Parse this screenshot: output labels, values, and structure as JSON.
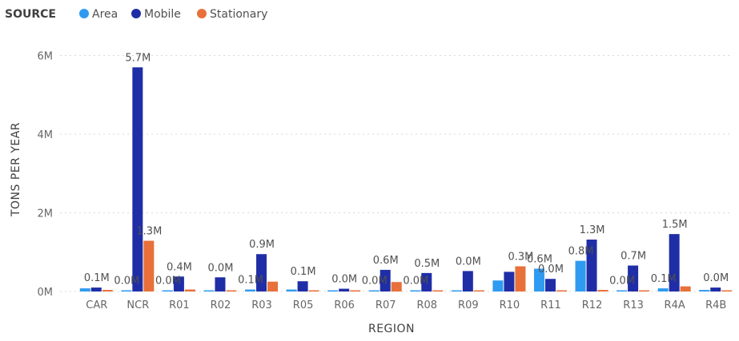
{
  "legend": {
    "title": "SOURCE",
    "items": [
      "Area",
      "Mobile",
      "Stationary"
    ]
  },
  "colors": {
    "Area": "#2f9bf0",
    "Mobile": "#1f2ea6",
    "Stationary": "#e8703a"
  },
  "chart_data": {
    "type": "bar",
    "title": "",
    "xlabel": "REGION",
    "ylabel": "TONS PER YEAR",
    "ylim": [
      0,
      6.6
    ],
    "yticks": [
      0,
      2,
      4,
      6
    ],
    "ytick_labels": [
      "0M",
      "2M",
      "4M",
      "6M"
    ],
    "grid": true,
    "legend_position": "top-left",
    "categories": [
      "CAR",
      "NCR",
      "R01",
      "R02",
      "R03",
      "R05",
      "R06",
      "R07",
      "R08",
      "R09",
      "R10",
      "R11",
      "R12",
      "R13",
      "R4A",
      "R4B"
    ],
    "series": [
      {
        "name": "Area",
        "values": [
          0.08,
          0.03,
          0.03,
          0.02,
          0.05,
          0.05,
          0.02,
          0.03,
          0.03,
          0.03,
          0.28,
          0.58,
          0.78,
          0.03,
          0.08,
          0.04
        ]
      },
      {
        "name": "Mobile",
        "values": [
          0.1,
          5.7,
          0.38,
          0.36,
          0.95,
          0.26,
          0.07,
          0.55,
          0.47,
          0.52,
          0.5,
          0.32,
          1.32,
          0.66,
          1.46,
          0.1
        ]
      },
      {
        "name": "Stationary",
        "values": [
          0.04,
          1.29,
          0.05,
          0.03,
          0.25,
          0.02,
          0.02,
          0.24,
          0.03,
          0.02,
          0.64,
          0.03,
          0.04,
          0.03,
          0.13,
          0.02
        ]
      }
    ],
    "data_labels": [
      {
        "category": "CAR",
        "text": "0.1M"
      },
      {
        "category": "NCR",
        "text": "0.0M"
      },
      {
        "category": "NCR",
        "text": "5.7M"
      },
      {
        "category": "NCR",
        "text": "1.3M"
      },
      {
        "category": "R01",
        "text": "0.0M"
      },
      {
        "category": "R01",
        "text": "0.4M"
      },
      {
        "category": "R02",
        "text": "0.0M"
      },
      {
        "category": "R03",
        "text": "0.1M"
      },
      {
        "category": "R03",
        "text": "0.9M"
      },
      {
        "category": "R05",
        "text": "0.1M"
      },
      {
        "category": "R06",
        "text": "0.0M"
      },
      {
        "category": "R07",
        "text": "0.0M"
      },
      {
        "category": "R07",
        "text": "0.6M"
      },
      {
        "category": "R08",
        "text": "0.0M"
      },
      {
        "category": "R08",
        "text": "0.5M"
      },
      {
        "category": "R09",
        "text": "0.0M"
      },
      {
        "category": "R10",
        "text": "0.3M"
      },
      {
        "category": "R11",
        "text": "0.6M"
      },
      {
        "category": "R11",
        "text": "0.0M"
      },
      {
        "category": "R12",
        "text": "0.8M"
      },
      {
        "category": "R12",
        "text": "1.3M"
      },
      {
        "category": "R13",
        "text": "0.0M"
      },
      {
        "category": "R13",
        "text": "0.7M"
      },
      {
        "category": "R4A",
        "text": "0.1M"
      },
      {
        "category": "R4A",
        "text": "1.5M"
      },
      {
        "category": "R4B",
        "text": "0.0M"
      }
    ]
  }
}
